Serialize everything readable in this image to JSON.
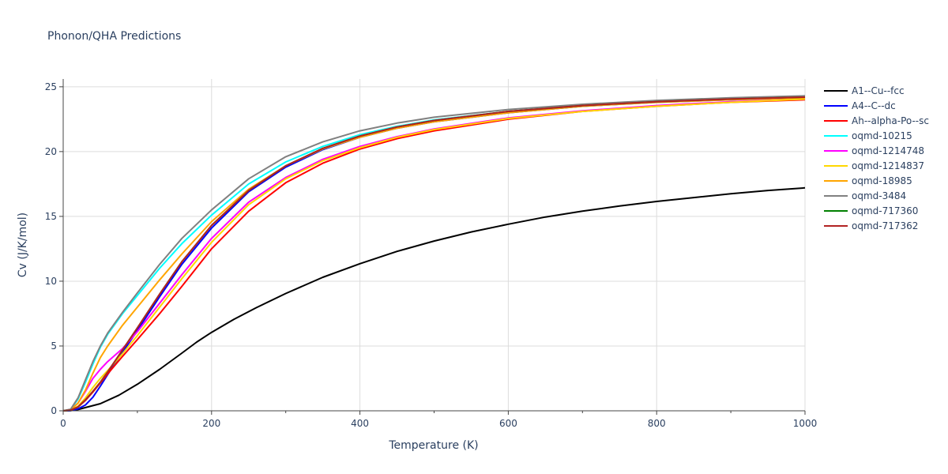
{
  "chart_data": {
    "type": "line",
    "title": "Phonon/QHA Predictions",
    "xlabel": "Temperature (K)",
    "ylabel": "Cv (J/K/mol)",
    "xlim": [
      0,
      1000
    ],
    "ylim": [
      0,
      25.6
    ],
    "x_ticks": [
      0,
      200,
      400,
      600,
      800,
      1000
    ],
    "x_tick_labels": [
      "0",
      "200",
      "400",
      "600",
      "800",
      "1000"
    ],
    "y_ticks": [
      0,
      5,
      10,
      15,
      20,
      25
    ],
    "y_tick_labels": [
      "0",
      "5",
      "10",
      "15",
      "20",
      "25"
    ],
    "grid": true,
    "legend_position": "right",
    "series": [
      {
        "name": "A1--Cu--fcc",
        "color": "#000000",
        "x": [
          0,
          10,
          20,
          30,
          50,
          75,
          100,
          130,
          160,
          180,
          200,
          230,
          260,
          300,
          350,
          400,
          450,
          500,
          550,
          600,
          650,
          700,
          750,
          800,
          850,
          900,
          950,
          1000
        ],
        "y": [
          0,
          0.02,
          0.1,
          0.25,
          0.55,
          1.2,
          2.05,
          3.2,
          4.45,
          5.3,
          6.05,
          7.05,
          7.95,
          9.05,
          10.3,
          11.35,
          12.3,
          13.1,
          13.8,
          14.4,
          14.95,
          15.4,
          15.8,
          16.15,
          16.45,
          16.75,
          17.0,
          17.2
        ]
      },
      {
        "name": "A4--C--dc",
        "color": "#0000ff",
        "x": [
          0,
          10,
          20,
          30,
          40,
          50,
          60,
          80,
          100,
          130,
          160,
          200,
          250,
          300,
          350,
          400,
          450,
          500,
          600,
          700,
          800,
          900,
          1000
        ],
        "y": [
          0,
          0.02,
          0.15,
          0.45,
          1.05,
          1.9,
          2.8,
          4.5,
          6.2,
          8.8,
          11.3,
          14.1,
          16.9,
          18.8,
          20.15,
          21.1,
          21.8,
          22.3,
          23.0,
          23.5,
          23.8,
          24.0,
          24.2
        ]
      },
      {
        "name": "Ah--alpha-Po--sc",
        "color": "#ff0000",
        "x": [
          0,
          10,
          20,
          30,
          40,
          50,
          60,
          80,
          100,
          130,
          160,
          200,
          250,
          300,
          350,
          400,
          450,
          500,
          600,
          700,
          800,
          900,
          1000
        ],
        "y": [
          0,
          0.05,
          0.3,
          0.8,
          1.45,
          2.15,
          2.85,
          4.2,
          5.5,
          7.5,
          9.6,
          12.5,
          15.4,
          17.6,
          19.1,
          20.2,
          21.0,
          21.6,
          22.5,
          23.1,
          23.5,
          23.8,
          24.0
        ]
      },
      {
        "name": "oqmd-10215",
        "color": "#00ffff",
        "x": [
          0,
          10,
          20,
          30,
          40,
          50,
          60,
          80,
          100,
          130,
          160,
          200,
          250,
          300,
          350,
          400,
          450,
          500,
          600,
          700,
          800,
          900,
          1000
        ],
        "y": [
          0,
          0.1,
          0.9,
          2.2,
          3.6,
          4.9,
          5.9,
          7.5,
          8.9,
          11.0,
          12.9,
          15.1,
          17.5,
          19.2,
          20.4,
          21.3,
          21.95,
          22.45,
          23.1,
          23.55,
          23.85,
          24.05,
          24.2
        ]
      },
      {
        "name": "oqmd-1214748",
        "color": "#ff00ff",
        "x": [
          0,
          10,
          20,
          30,
          40,
          50,
          60,
          80,
          100,
          130,
          160,
          200,
          250,
          300,
          350,
          400,
          450,
          500,
          600,
          700,
          800,
          900,
          1000
        ],
        "y": [
          0,
          0.1,
          0.6,
          1.5,
          2.5,
          3.2,
          3.8,
          4.8,
          6.1,
          8.3,
          10.5,
          13.3,
          16.1,
          18.0,
          19.4,
          20.4,
          21.15,
          21.75,
          22.6,
          23.15,
          23.55,
          23.85,
          24.05
        ]
      },
      {
        "name": "oqmd-1214837",
        "color": "#ffd700",
        "x": [
          0,
          10,
          20,
          30,
          40,
          50,
          60,
          80,
          100,
          130,
          160,
          200,
          250,
          300,
          350,
          400,
          450,
          500,
          600,
          700,
          800,
          900,
          1000
        ],
        "y": [
          0,
          0.05,
          0.35,
          1.0,
          1.8,
          2.5,
          3.1,
          4.4,
          5.8,
          8.0,
          10.2,
          13.0,
          15.9,
          17.9,
          19.3,
          20.3,
          21.1,
          21.7,
          22.55,
          23.1,
          23.5,
          23.8,
          24.05
        ]
      },
      {
        "name": "oqmd-18985",
        "color": "#ffa500",
        "x": [
          0,
          10,
          20,
          30,
          40,
          50,
          60,
          80,
          100,
          130,
          160,
          200,
          250,
          300,
          350,
          400,
          450,
          500,
          600,
          700,
          800,
          900,
          1000
        ],
        "y": [
          0,
          0.08,
          0.6,
          1.6,
          2.9,
          4.1,
          5.0,
          6.6,
          8.0,
          10.1,
          12.1,
          14.6,
          17.1,
          18.9,
          20.2,
          21.1,
          21.8,
          22.3,
          23.0,
          23.5,
          23.8,
          24.0,
          24.15
        ]
      },
      {
        "name": "oqmd-3484",
        "color": "#808080",
        "x": [
          0,
          10,
          20,
          30,
          40,
          50,
          60,
          80,
          100,
          130,
          160,
          200,
          250,
          300,
          350,
          400,
          450,
          500,
          600,
          700,
          800,
          900,
          1000
        ],
        "y": [
          0,
          0.12,
          1.0,
          2.4,
          3.8,
          5.0,
          6.0,
          7.6,
          9.1,
          11.3,
          13.3,
          15.5,
          17.9,
          19.6,
          20.75,
          21.6,
          22.2,
          22.65,
          23.25,
          23.65,
          23.95,
          24.15,
          24.3
        ]
      },
      {
        "name": "oqmd-717360",
        "color": "#008000",
        "x": [
          0,
          10,
          20,
          30,
          40,
          50,
          60,
          80,
          100,
          130,
          160,
          200,
          250,
          300,
          350,
          400,
          450,
          500,
          600,
          700,
          800,
          900,
          1000
        ],
        "y": [
          0,
          0.04,
          0.3,
          0.85,
          1.5,
          2.2,
          3.0,
          4.7,
          6.4,
          9.0,
          11.5,
          14.3,
          17.0,
          18.9,
          20.25,
          21.2,
          21.9,
          22.4,
          23.1,
          23.55,
          23.85,
          24.05,
          24.2
        ]
      },
      {
        "name": "oqmd-717362",
        "color": "#b22222",
        "x": [
          0,
          10,
          20,
          30,
          40,
          50,
          60,
          80,
          100,
          130,
          160,
          200,
          250,
          300,
          350,
          400,
          450,
          500,
          600,
          700,
          800,
          900,
          1000
        ],
        "y": [
          0,
          0.04,
          0.3,
          0.85,
          1.5,
          2.2,
          3.0,
          4.7,
          6.4,
          9.0,
          11.5,
          14.3,
          17.0,
          18.9,
          20.25,
          21.2,
          21.9,
          22.4,
          23.1,
          23.55,
          23.85,
          24.05,
          24.2
        ]
      }
    ]
  }
}
